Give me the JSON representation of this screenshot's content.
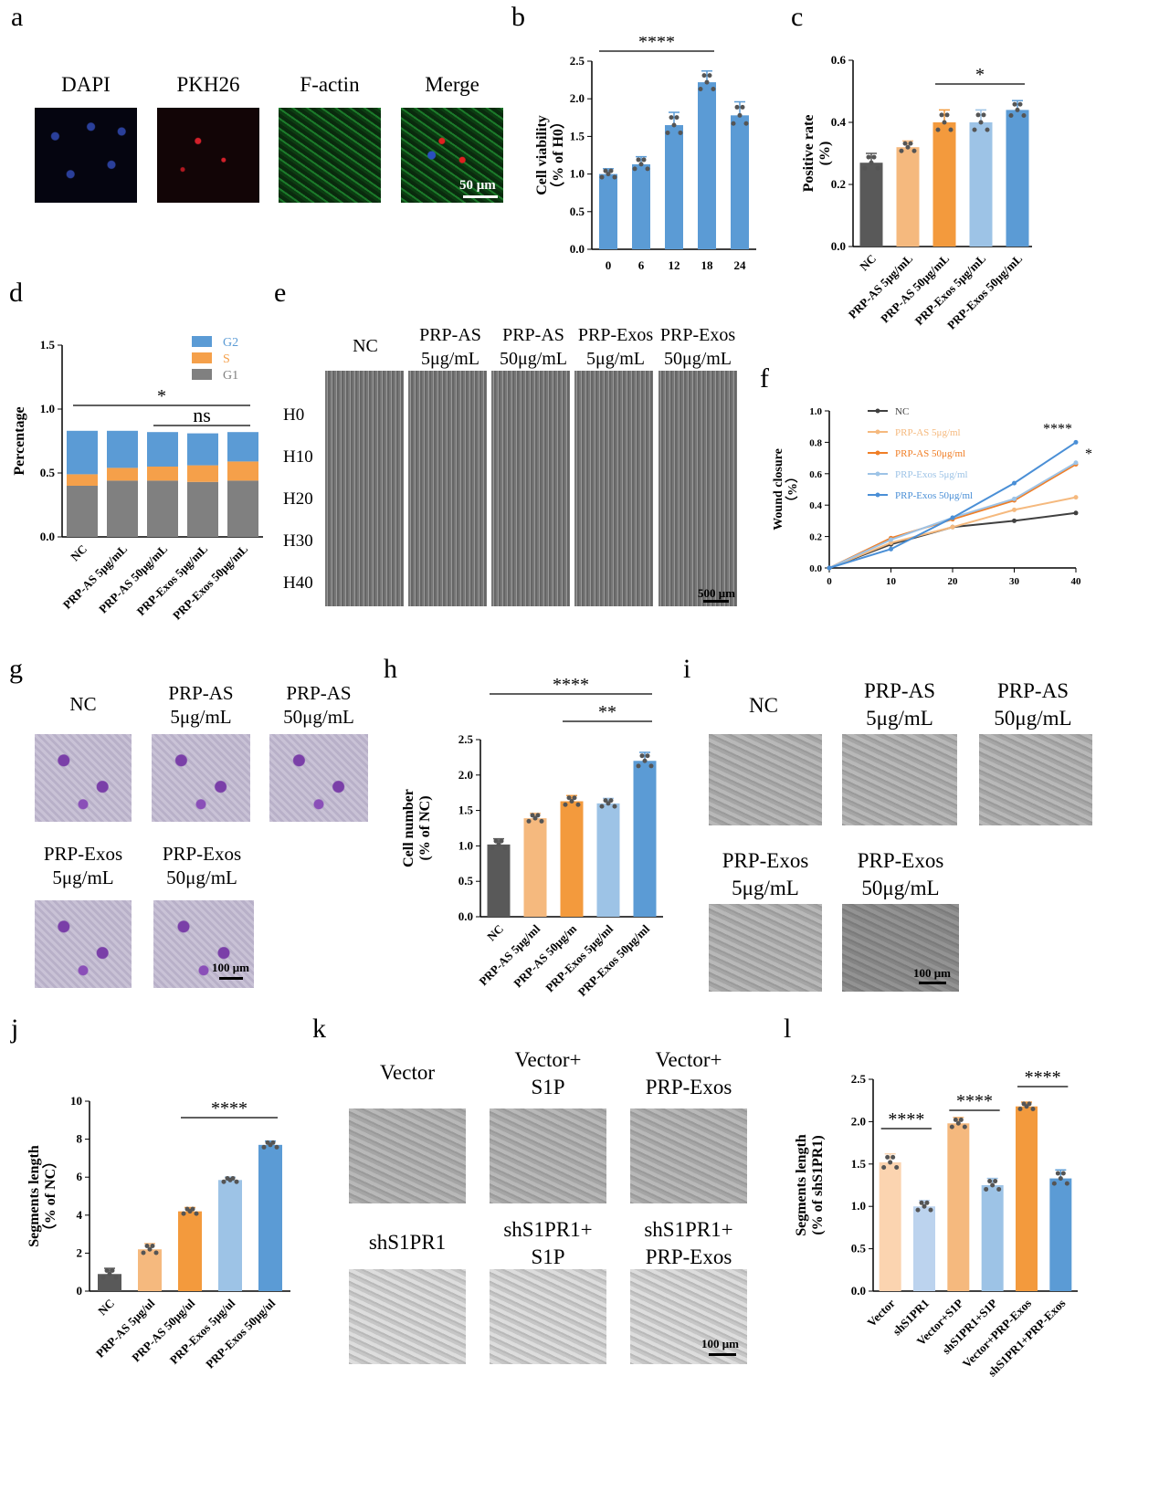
{
  "panels": {
    "a": {
      "letter": "a",
      "labels": [
        "DAPI",
        "PKH26",
        "F-actin",
        "Merge"
      ],
      "scale": "50 μm"
    },
    "b": {
      "letter": "b"
    },
    "c": {
      "letter": "c"
    },
    "d": {
      "letter": "d"
    },
    "e": {
      "letter": "e",
      "cols": [
        "NC",
        "PRP-AS\n5μg/mL",
        "PRP-AS\n50μg/mL",
        "PRP-Exos\n5μg/mL",
        "PRP-Exos\n50μg/mL"
      ],
      "rows": [
        "H0",
        "H10",
        "H20",
        "H30",
        "H40"
      ],
      "scale": "500 μm"
    },
    "f": {
      "letter": "f"
    },
    "g": {
      "letter": "g",
      "labels": [
        "NC",
        "PRP-AS\n5μg/mL",
        "PRP-AS\n50μg/mL",
        "PRP-Exos\n5μg/mL",
        "PRP-Exos\n50μg/mL"
      ],
      "scale": "100 μm"
    },
    "h": {
      "letter": "h"
    },
    "i": {
      "letter": "i",
      "labels": [
        "NC",
        "PRP-AS\n5μg/mL",
        "PRP-AS\n50μg/mL",
        "PRP-Exos\n5μg/mL",
        "PRP-Exos\n50μg/mL"
      ],
      "scale": "100 μm"
    },
    "j": {
      "letter": "j"
    },
    "k": {
      "letter": "k",
      "labels": [
        "Vector",
        "Vector+\nS1P",
        "Vector+\nPRP-Exos",
        "shS1PR1",
        "shS1PR1+\nS1P",
        "shS1PR1+\nPRP-Exos"
      ],
      "scale": "100 μm"
    },
    "l": {
      "letter": "l"
    }
  },
  "chart_data": [
    {
      "id": "b",
      "type": "bar",
      "categories": [
        "0",
        "6",
        "12",
        "18",
        "24"
      ],
      "values": [
        1.0,
        1.13,
        1.65,
        2.22,
        1.78
      ],
      "errors": [
        0.07,
        0.1,
        0.17,
        0.15,
        0.18
      ],
      "ylabel": "Cell viability\n（% of H0）",
      "ylim": [
        0,
        2.5
      ],
      "yticks": [
        "0.0",
        "0.5",
        "1.0",
        "1.5",
        "2.0",
        "2.5"
      ],
      "colors": [
        "#5b9bd5"
      ],
      "sig": [
        {
          "from": 0,
          "to": 3,
          "text": "****"
        }
      ]
    },
    {
      "id": "c",
      "type": "bar",
      "categories": [
        "NC",
        "PRP-AS 5μg/mL",
        "PRP-AS 50μg/mL",
        "PRP-Exos 5μg/mL",
        "PRP-Exos 50μg/mL"
      ],
      "values": [
        0.27,
        0.32,
        0.4,
        0.4,
        0.44
      ],
      "errors": [
        0.03,
        0.02,
        0.04,
        0.04,
        0.03
      ],
      "ylabel": "Positive rate\n(%)",
      "ylim": [
        0,
        0.6
      ],
      "yticks": [
        "0.0",
        "0.2",
        "0.4",
        "0.6"
      ],
      "colors": [
        "#595959",
        "#f5b97e",
        "#f39a3d",
        "#9dc3e6",
        "#5b9bd5"
      ],
      "sig": [
        {
          "from": 2,
          "to": 4,
          "text": "*"
        }
      ]
    },
    {
      "id": "d",
      "type": "bar",
      "categories": [
        "NC",
        "PRP-AS 5μg/mL",
        "PRP-AS 50μg/mL",
        "PRP-Exos 5μg/mL",
        "PRP-Exos 50μg/mL"
      ],
      "series": [
        {
          "name": "G1",
          "values": [
            0.4,
            0.44,
            0.44,
            0.43,
            0.44
          ],
          "color": "#808080"
        },
        {
          "name": "S",
          "values": [
            0.09,
            0.1,
            0.11,
            0.13,
            0.15
          ],
          "color": "#f5a04a"
        },
        {
          "name": "G2",
          "values": [
            0.34,
            0.29,
            0.27,
            0.25,
            0.23
          ],
          "color": "#5b9bd5"
        }
      ],
      "ylabel": "Percentage",
      "ylim": [
        0,
        1.5
      ],
      "yticks": [
        "0.0",
        "0.5",
        "1.0",
        "1.5"
      ],
      "sig": [
        {
          "from": 0,
          "to": 4,
          "text": "*"
        },
        {
          "from": 2,
          "to": 4,
          "text": "ns"
        }
      ]
    },
    {
      "id": "f",
      "type": "line",
      "x": [
        0,
        10,
        20,
        30,
        40
      ],
      "series": [
        {
          "name": "NC",
          "values": [
            0,
            0.15,
            0.26,
            0.3,
            0.35
          ],
          "color": "#404040"
        },
        {
          "name": "PRP-AS 5μg/ml",
          "values": [
            0,
            0.16,
            0.26,
            0.37,
            0.45
          ],
          "color": "#f5b97e"
        },
        {
          "name": "PRP-AS 50μg/ml",
          "values": [
            0,
            0.19,
            0.31,
            0.43,
            0.66
          ],
          "color": "#f07e26"
        },
        {
          "name": "PRP-Exos 5μg/ml",
          "values": [
            0,
            0.18,
            0.32,
            0.44,
            0.67
          ],
          "color": "#9dc3e6"
        },
        {
          "name": "PRP-Exos 50μg/ml",
          "values": [
            0,
            0.12,
            0.32,
            0.54,
            0.8
          ],
          "color": "#4a8fd6"
        }
      ],
      "ylabel": "Wound closure\n（%）",
      "ylim": [
        0,
        1.0
      ],
      "yticks": [
        "0.0",
        "0.2",
        "0.4",
        "0.6",
        "0.8",
        "1.0"
      ],
      "sig": [
        {
          "text": "****"
        },
        {
          "text": "*"
        }
      ]
    },
    {
      "id": "h",
      "type": "bar",
      "categories": [
        "NC",
        "PRP-AS 5μg/ml",
        "PRP-AS 50μg/m",
        "PRP-Exos 5μg/ml",
        "PRP-Exos 50μg/ml"
      ],
      "values": [
        1.02,
        1.39,
        1.63,
        1.6,
        2.2
      ],
      "errors": [
        0.08,
        0.07,
        0.08,
        0.07,
        0.12
      ],
      "ylabel": "Cell number\n(% of NC)",
      "ylim": [
        0,
        2.5
      ],
      "yticks": [
        "0.0",
        "0.5",
        "1.0",
        "1.5",
        "2.0",
        "2.5"
      ],
      "colors": [
        "#595959",
        "#f5b97e",
        "#f39a3d",
        "#9dc3e6",
        "#5b9bd5"
      ],
      "sig": [
        {
          "from": 0,
          "to": 4,
          "text": "****"
        },
        {
          "from": 2,
          "to": 4,
          "text": "**"
        }
      ]
    },
    {
      "id": "j",
      "type": "bar",
      "categories": [
        "NC",
        "PRP-AS 5μg/ul",
        "PRP-AS 50μg/ul",
        "PRP-Exos 5μg/ul",
        "PRP-Exos 50μg/ul"
      ],
      "values": [
        0.9,
        2.2,
        4.2,
        5.85,
        7.7
      ],
      "errors": [
        0.3,
        0.3,
        0.2,
        0.15,
        0.2
      ],
      "ylabel": "Segments length\n（% of NC）",
      "ylim": [
        0,
        10
      ],
      "yticks": [
        "0",
        "2",
        "4",
        "6",
        "8",
        "10"
      ],
      "colors": [
        "#595959",
        "#f5b97e",
        "#f39a3d",
        "#9dc3e6",
        "#5b9bd5"
      ],
      "sig": [
        {
          "from": 2,
          "to": 4,
          "text": "****"
        }
      ]
    },
    {
      "id": "l",
      "type": "bar",
      "categories": [
        "Vector",
        "shS1PR1",
        "Vector+S1P",
        "shS1PR1+S1P",
        "Vector+PRP-Exos",
        "shS1PR1+PRP-Exos"
      ],
      "values": [
        1.52,
        1.0,
        1.98,
        1.25,
        2.18,
        1.33
      ],
      "errors": [
        0.1,
        0.07,
        0.07,
        0.08,
        0.05,
        0.1
      ],
      "ylabel": "Segments length\n(% of shS1PR1)",
      "ylim": [
        0,
        2.5
      ],
      "yticks": [
        "0.0",
        "0.5",
        "1.0",
        "1.5",
        "2.0",
        "2.5"
      ],
      "colors": [
        "#fbd4b0",
        "#bcd3ee",
        "#f5b97e",
        "#9dc3e6",
        "#f39a3d",
        "#5b9bd5"
      ],
      "sig": [
        {
          "from": 0,
          "to": 1,
          "text": "****"
        },
        {
          "from": 2,
          "to": 3,
          "text": "****"
        },
        {
          "from": 4,
          "to": 5,
          "text": "****"
        }
      ]
    }
  ]
}
